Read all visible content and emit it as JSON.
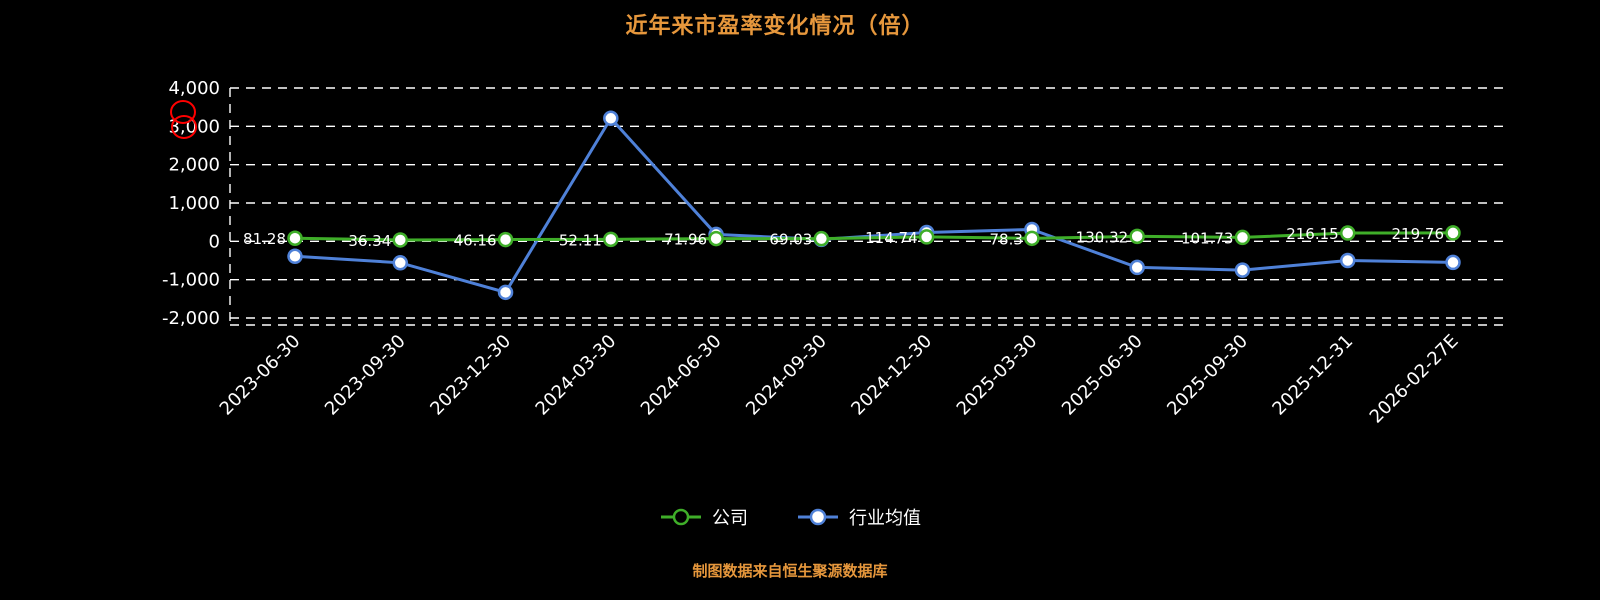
{
  "title": "近年来市盈率变化情况（倍）",
  "footer": "制图数据来自恒生聚源数据库",
  "colors": {
    "background": "#000000",
    "title": "#e6973c",
    "footer": "#e6973c",
    "axis_text": "#ffffff",
    "grid": "#ffffff",
    "company": "#3fae29",
    "industry": "#4f81d8",
    "data_label": "#ffffff",
    "annotation": "#ff0000"
  },
  "legend": [
    {
      "label": "公司",
      "color": "#3fae29"
    },
    {
      "label": "行业均值",
      "color": "#4f81d8"
    }
  ],
  "chart_data": {
    "type": "line",
    "title": "近年来市盈率变化情况（倍）",
    "categories": [
      "2023-06-30",
      "2023-09-30",
      "2023-12-30",
      "2024-03-30",
      "2024-06-30",
      "2024-09-30",
      "2024-12-30",
      "2025-03-30",
      "2025-06-30",
      "2025-09-30",
      "2025-12-31",
      "2026-02-27E"
    ],
    "series": [
      {
        "name": "公司",
        "color": "#3fae29",
        "values": [
          81.28,
          36.34,
          46.16,
          52.11,
          71.96,
          69.03,
          114.74,
          78.3,
          130.32,
          101.73,
          216.15,
          219.76
        ],
        "point_labels": [
          "81.28",
          "36.34",
          "46.16",
          "52.11",
          "71.96",
          "69.03",
          "114.74",
          "78.3",
          "130.32",
          "101.73",
          "216.15",
          "219.76"
        ]
      },
      {
        "name": "行业均值",
        "color": "#4f81d8",
        "values": [
          -390,
          -560,
          -1330,
          3210,
          180,
          50,
          230,
          310,
          -680,
          -750,
          -500,
          -550
        ]
      }
    ],
    "ylim": [
      -2000,
      4000
    ],
    "yticks": [
      4000,
      3000,
      2000,
      1000,
      0,
      -1000,
      -2000
    ],
    "ytick_labels": [
      "4,000",
      "3,000",
      "2,000",
      "1,000",
      "0",
      "-1,000",
      "-2,000"
    ],
    "grid": "horizontal-dashed",
    "legend_position": "bottom",
    "annotation": "red double circle marks near y-axis 3,000 label"
  }
}
